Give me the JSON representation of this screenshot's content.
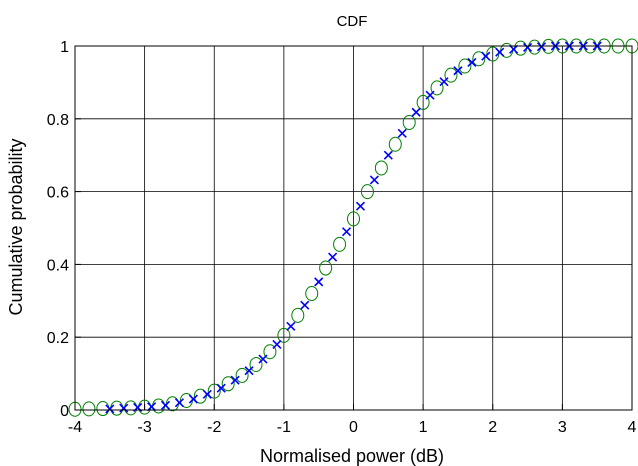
{
  "chart_data": {
    "type": "scatter",
    "title": "CDF",
    "xlabel": "Normalised power (dB)",
    "ylabel": "Cumulative probability",
    "xlim": [
      -4,
      4
    ],
    "ylim": [
      0,
      1
    ],
    "x_ticks": [
      "-4",
      "-3",
      "-2",
      "-1",
      "0",
      "1",
      "2",
      "3",
      "4"
    ],
    "y_ticks": [
      "0",
      "0.2",
      "0.4",
      "0.6",
      "0.8",
      "1"
    ],
    "grid": true,
    "legend": "none",
    "series": [
      {
        "marker": "circle",
        "color": "#008000",
        "points": [
          [
            -4.0,
            0.002
          ],
          [
            -3.8,
            0.003
          ],
          [
            -3.6,
            0.004
          ],
          [
            -3.4,
            0.005
          ],
          [
            -3.2,
            0.006
          ],
          [
            -3.0,
            0.008
          ],
          [
            -2.8,
            0.011
          ],
          [
            -2.6,
            0.017
          ],
          [
            -2.4,
            0.026
          ],
          [
            -2.2,
            0.038
          ],
          [
            -2.0,
            0.052
          ],
          [
            -1.8,
            0.072
          ],
          [
            -1.6,
            0.095
          ],
          [
            -1.4,
            0.125
          ],
          [
            -1.2,
            0.16
          ],
          [
            -1.0,
            0.205
          ],
          [
            -0.8,
            0.26
          ],
          [
            -0.6,
            0.32
          ],
          [
            -0.4,
            0.39
          ],
          [
            -0.2,
            0.455
          ],
          [
            0.0,
            0.525
          ],
          [
            0.2,
            0.6
          ],
          [
            0.4,
            0.665
          ],
          [
            0.6,
            0.73
          ],
          [
            0.8,
            0.79
          ],
          [
            1.0,
            0.845
          ],
          [
            1.2,
            0.885
          ],
          [
            1.4,
            0.92
          ],
          [
            1.6,
            0.945
          ],
          [
            1.8,
            0.965
          ],
          [
            2.0,
            0.978
          ],
          [
            2.2,
            0.988
          ],
          [
            2.4,
            0.994
          ],
          [
            2.6,
            0.997
          ],
          [
            2.8,
            0.999
          ],
          [
            3.0,
            1.0
          ],
          [
            3.2,
            1.0
          ],
          [
            3.4,
            1.0
          ],
          [
            3.6,
            1.0
          ],
          [
            3.8,
            1.0
          ],
          [
            4.0,
            1.0
          ]
        ]
      },
      {
        "marker": "x",
        "color": "#0000ff",
        "points": [
          [
            -3.5,
            0.003
          ],
          [
            -3.3,
            0.005
          ],
          [
            -3.1,
            0.007
          ],
          [
            -2.9,
            0.009
          ],
          [
            -2.7,
            0.013
          ],
          [
            -2.5,
            0.02
          ],
          [
            -2.3,
            0.03
          ],
          [
            -2.1,
            0.043
          ],
          [
            -1.9,
            0.06
          ],
          [
            -1.7,
            0.082
          ],
          [
            -1.5,
            0.108
          ],
          [
            -1.3,
            0.14
          ],
          [
            -1.1,
            0.18
          ],
          [
            -0.9,
            0.23
          ],
          [
            -0.7,
            0.288
          ],
          [
            -0.5,
            0.352
          ],
          [
            -0.3,
            0.42
          ],
          [
            -0.1,
            0.49
          ],
          [
            0.1,
            0.56
          ],
          [
            0.3,
            0.632
          ],
          [
            0.5,
            0.7
          ],
          [
            0.7,
            0.76
          ],
          [
            0.9,
            0.818
          ],
          [
            1.1,
            0.865
          ],
          [
            1.3,
            0.902
          ],
          [
            1.5,
            0.932
          ],
          [
            1.7,
            0.955
          ],
          [
            1.9,
            0.972
          ],
          [
            2.1,
            0.983
          ],
          [
            2.3,
            0.991
          ],
          [
            2.5,
            0.996
          ],
          [
            2.7,
            0.998
          ],
          [
            2.9,
            1.0
          ],
          [
            3.1,
            1.0
          ],
          [
            3.3,
            1.0
          ],
          [
            3.5,
            1.0
          ]
        ]
      }
    ]
  }
}
